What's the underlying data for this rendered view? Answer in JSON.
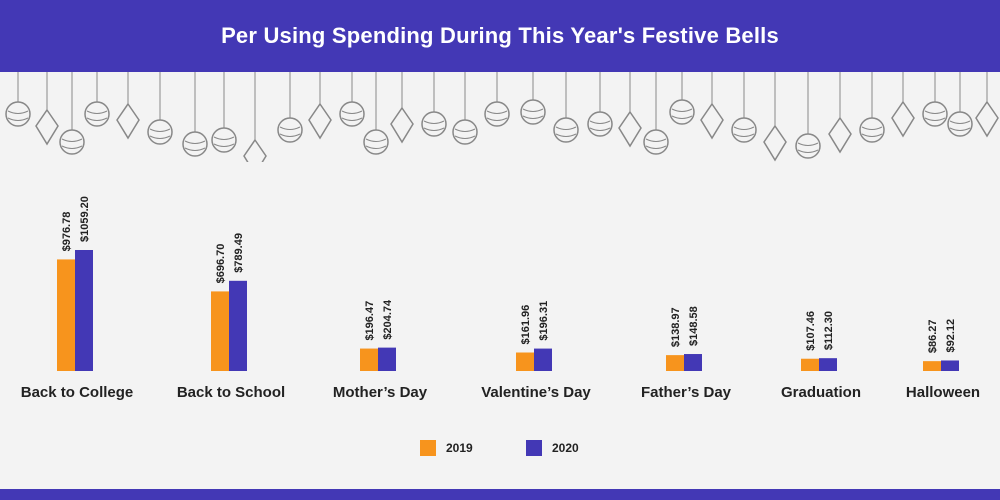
{
  "header": {
    "title": "Per Using Spending During This Year's Festive Bells"
  },
  "colors": {
    "header_bg": "#4338b5",
    "series_2019": "#f7941d",
    "series_2020": "#4338b5",
    "ornament": "#888888"
  },
  "chart_data": {
    "type": "bar",
    "title": "Per Using Spending During This Year's Festive Bells",
    "categories": [
      "Back to College",
      "Back to School",
      "Mother’s Day",
      "Valentine’s Day",
      "Father’s Day",
      "Graduation",
      "Halloween"
    ],
    "series": [
      {
        "name": "2019",
        "values": [
          976.78,
          696.7,
          196.47,
          161.96,
          138.97,
          107.46,
          86.27
        ],
        "labels": [
          "$976.78",
          "$696.70",
          "$196.47",
          "$161.96",
          "$138.97",
          "$107.46",
          "$86.27"
        ]
      },
      {
        "name": "2020",
        "values": [
          1059.2,
          789.49,
          204.74,
          196.31,
          148.58,
          112.3,
          92.12
        ],
        "labels": [
          "$1059.20",
          "$789.49",
          "$204.74",
          "$196.31",
          "$148.58",
          "$112.30",
          "$92.12"
        ]
      }
    ],
    "xlabel": "",
    "ylabel": "",
    "ylim": [
      0,
      1059.2
    ],
    "grid": false,
    "legend_position": "bottom-center"
  },
  "legend": {
    "items": [
      {
        "label": "2019"
      },
      {
        "label": "2020"
      }
    ]
  }
}
